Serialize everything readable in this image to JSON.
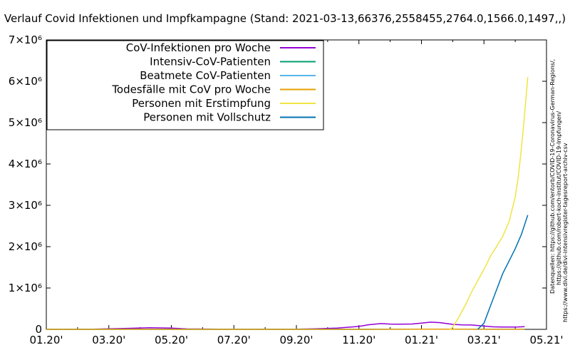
{
  "chart_data": {
    "type": "line",
    "title": "Verlauf Covid Infektionen und Impfkampagne (Stand: 2021-03-13,66376,2558455,2764.0,1566.0,1497,,)",
    "xlabel": "",
    "ylabel": "",
    "x_ticks": [
      "01.20'",
      "03.20'",
      "05.20'",
      "07.20'",
      "09.20'",
      "11.20'",
      "01.21'",
      "03.21'",
      "05.21'"
    ],
    "y_ticks": [
      {
        "value": 0,
        "label": "0"
      },
      {
        "value": 1000000,
        "label": "1×10⁶"
      },
      {
        "value": 2000000,
        "label": "2×10⁶"
      },
      {
        "value": 3000000,
        "label": "3×10⁶"
      },
      {
        "value": 4000000,
        "label": "4×10⁶"
      },
      {
        "value": 5000000,
        "label": "5×10⁶"
      },
      {
        "value": 6000000,
        "label": "6×10⁶"
      },
      {
        "value": 7000000,
        "label": "7×10⁶"
      }
    ],
    "xlim": [
      0,
      16
    ],
    "ylim": [
      0,
      7000000
    ],
    "x_unit": "months since 01.20'",
    "grid": false,
    "legend_position": "top-left",
    "series": [
      {
        "name": "CoV-Infektionen pro Woche",
        "color": "#9400d3",
        "points": [
          [
            0,
            0
          ],
          [
            1.5,
            3000
          ],
          [
            2.5,
            20000
          ],
          [
            3.3,
            38000
          ],
          [
            4.0,
            30000
          ],
          [
            4.5,
            10000
          ],
          [
            5.5,
            5000
          ],
          [
            7.0,
            4000
          ],
          [
            8.0,
            6000
          ],
          [
            8.6,
            12000
          ],
          [
            9.3,
            30000
          ],
          [
            10.0,
            70000
          ],
          [
            10.3,
            110000
          ],
          [
            10.7,
            140000
          ],
          [
            11.0,
            128000
          ],
          [
            11.3,
            125000
          ],
          [
            11.7,
            130000
          ],
          [
            12.0,
            150000
          ],
          [
            12.3,
            175000
          ],
          [
            12.6,
            162000
          ],
          [
            13.0,
            120000
          ],
          [
            13.3,
            108000
          ],
          [
            13.6,
            105000
          ],
          [
            14.0,
            80000
          ],
          [
            14.3,
            60000
          ],
          [
            14.6,
            55000
          ],
          [
            14.9,
            55000
          ],
          [
            15.1,
            58000
          ],
          [
            15.3,
            66376
          ]
        ]
      },
      {
        "name": "Intensiv-CoV-Patienten",
        "color": "#009e73",
        "points": [
          [
            0,
            0
          ],
          [
            3.0,
            2000
          ],
          [
            5.0,
            500
          ],
          [
            9.0,
            1000
          ],
          [
            11.0,
            3500
          ],
          [
            12.0,
            5000
          ],
          [
            13.0,
            4500
          ],
          [
            14.0,
            3000
          ],
          [
            15.3,
            2764
          ]
        ]
      },
      {
        "name": "Beatmete CoV-Patienten",
        "color": "#56b4e9",
        "points": [
          [
            0,
            0
          ],
          [
            3.0,
            1500
          ],
          [
            5.0,
            300
          ],
          [
            9.0,
            600
          ],
          [
            11.0,
            2000
          ],
          [
            12.0,
            3000
          ],
          [
            13.0,
            2700
          ],
          [
            14.0,
            1800
          ],
          [
            15.3,
            1566
          ]
        ]
      },
      {
        "name": "Todesfälle mit CoV pro Woche",
        "color": "#e69f00",
        "points": [
          [
            0,
            0
          ],
          [
            3.0,
            1500
          ],
          [
            5.0,
            200
          ],
          [
            9.0,
            200
          ],
          [
            11.0,
            2500
          ],
          [
            12.0,
            5000
          ],
          [
            13.0,
            5000
          ],
          [
            14.0,
            2500
          ],
          [
            15.3,
            1497
          ]
        ]
      },
      {
        "name": "Personen mit Erstimpfung",
        "color": "#f0e442",
        "points": [
          [
            12.9,
            0
          ],
          [
            13.0,
            50000
          ],
          [
            13.2,
            300000
          ],
          [
            13.4,
            580000
          ],
          [
            13.6,
            900000
          ],
          [
            13.8,
            1180000
          ],
          [
            14.0,
            1450000
          ],
          [
            14.2,
            1760000
          ],
          [
            14.4,
            2000000
          ],
          [
            14.6,
            2250000
          ],
          [
            14.8,
            2600000
          ],
          [
            15.0,
            3200000
          ],
          [
            15.1,
            3700000
          ],
          [
            15.2,
            4400000
          ],
          [
            15.3,
            5200000
          ],
          [
            15.4,
            6100000
          ]
        ]
      },
      {
        "name": "Personen mit Vollschutz",
        "color": "#0072b2",
        "points": [
          [
            13.8,
            0
          ],
          [
            14.0,
            150000
          ],
          [
            14.2,
            550000
          ],
          [
            14.4,
            950000
          ],
          [
            14.6,
            1350000
          ],
          [
            14.8,
            1650000
          ],
          [
            15.0,
            1950000
          ],
          [
            15.2,
            2300000
          ],
          [
            15.4,
            2764000
          ]
        ]
      }
    ]
  },
  "source_lines": [
    "Datenquellen: https://github.com/entorb/COVID-19-Coronavirus-German-Regions/,",
    "https://github.com/robert-koch-institut/COVID-19-Impfungen/",
    "https://www.divi.de/divi-intensivregister-tagesreport-archiv-csv"
  ]
}
